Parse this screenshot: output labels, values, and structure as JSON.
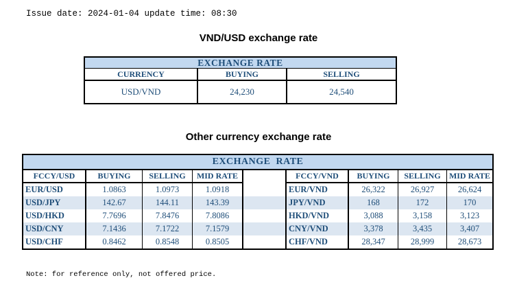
{
  "page": {
    "issue_line": "Issue date: 2024-01-04 update time: 08:30",
    "note_line": "Note: for reference only, not offered price."
  },
  "colors": {
    "band": "#C2D8F0",
    "stripe": "#DCE6F1",
    "text": "#1F4E79",
    "border": "#000000"
  },
  "table1": {
    "title": "VND/USD exchange rate",
    "band_label": "EXCHANGE RATE",
    "headers": [
      "CURRENCY",
      "BUYING",
      "SELLING"
    ],
    "row": [
      "USD/VND",
      "24,230",
      "24,540"
    ]
  },
  "table2": {
    "title": "Other currency exchange rate",
    "band_label": "EXCHANGE  RATE",
    "left": {
      "headers": [
        "FCCY/USD",
        "BUYING",
        "SELLING",
        "MID RATE"
      ],
      "rows": [
        [
          "EUR/USD",
          "1.0863",
          "1.0973",
          "1.0918"
        ],
        [
          "USD/JPY",
          "142.67",
          "144.11",
          "143.39"
        ],
        [
          "USD/HKD",
          "7.7696",
          "7.8476",
          "7.8086"
        ],
        [
          "USD/CNY",
          "7.1436",
          "7.1722",
          "7.1579"
        ],
        [
          "USD/CHF",
          "0.8462",
          "0.8548",
          "0.8505"
        ]
      ]
    },
    "right": {
      "headers": [
        "FCCY/VND",
        "BUYING",
        "SELLING",
        "MID RATE"
      ],
      "rows": [
        [
          "EUR/VND",
          "26,322",
          "26,927",
          "26,624"
        ],
        [
          "JPY/VND",
          "168",
          "172",
          "170"
        ],
        [
          "HKD/VND",
          "3,088",
          "3,158",
          "3,123"
        ],
        [
          "CNY/VND",
          "3,378",
          "3,435",
          "3,407"
        ],
        [
          "CHF/VND",
          "28,347",
          "28,999",
          "28,673"
        ]
      ]
    }
  }
}
